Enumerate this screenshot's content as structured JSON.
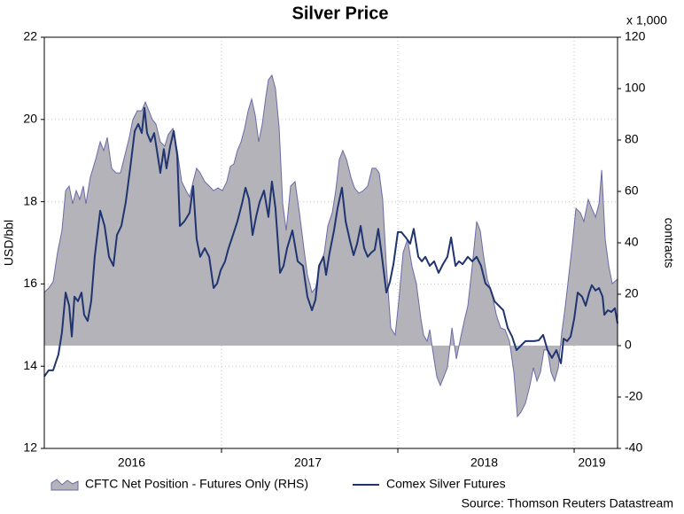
{
  "chart_data": {
    "type": "area-line",
    "title": "Silver Price",
    "ylabel": "USD/bbl",
    "y2label": "contracts",
    "y2_unit": "x 1,000",
    "source": "Source: Thomson Reuters Datastream",
    "xlim": [
      2015.995,
      2019.246
    ],
    "xticks": [
      {
        "value": 2016.49,
        "label": "2016"
      },
      {
        "value": 2017.49,
        "label": "2017"
      },
      {
        "value": 2018.49,
        "label": "2018"
      },
      {
        "value": 2019.1,
        "label": "2019"
      }
    ],
    "xminor_ticks": [
      2017,
      2018,
      2019
    ],
    "ylim": [
      12,
      22
    ],
    "yticks": [
      12,
      14,
      16,
      18,
      20,
      22
    ],
    "y2lim": [
      -40,
      120
    ],
    "y2ticks": [
      -40,
      -20,
      0,
      20,
      40,
      60,
      80,
      100,
      120
    ],
    "grid": true,
    "series": [
      {
        "name": "CFTC Net Position - Futures Only (RHS)",
        "type": "area",
        "axis": "y2",
        "color": "#b3b3b9",
        "edge_color": "#6a6aa8",
        "x": [
          2015.995,
          2016.02,
          2016.045,
          2016.07,
          2016.095,
          2016.116,
          2016.136,
          2016.156,
          2016.176,
          2016.196,
          2016.216,
          2016.231,
          2016.256,
          2016.286,
          2016.312,
          2016.332,
          2016.352,
          2016.377,
          2016.402,
          2016.427,
          2016.452,
          2016.477,
          2016.497,
          2016.523,
          2016.548,
          2016.568,
          2016.588,
          2016.608,
          2016.628,
          2016.653,
          2016.678,
          2016.698,
          2016.724,
          2016.749,
          2016.774,
          2016.799,
          2016.819,
          2016.839,
          2016.859,
          2016.879,
          2016.905,
          2016.93,
          2016.955,
          2016.98,
          2017.005,
          2017.03,
          2017.05,
          2017.07,
          2017.09,
          2017.111,
          2017.131,
          2017.151,
          2017.171,
          2017.191,
          2017.211,
          2017.231,
          2017.251,
          2017.266,
          2017.286,
          2017.306,
          2017.327,
          2017.347,
          2017.367,
          2017.392,
          2017.417,
          2017.442,
          2017.467,
          2017.487,
          2017.513,
          2017.533,
          2017.558,
          2017.583,
          2017.603,
          2017.628,
          2017.648,
          2017.668,
          2017.688,
          2017.709,
          2017.734,
          2017.754,
          2017.779,
          2017.804,
          2017.829,
          2017.854,
          2017.874,
          2017.894,
          2017.914,
          2017.935,
          2017.96,
          2017.985,
          2018.005,
          2018.03,
          2018.055,
          2018.08,
          2018.105,
          2018.131,
          2018.146,
          2018.166,
          2018.181,
          2018.201,
          2018.221,
          2018.241,
          2018.261,
          2018.281,
          2018.307,
          2018.332,
          2018.357,
          2018.377,
          2018.397,
          2018.422,
          2018.447,
          2018.467,
          2018.487,
          2018.507,
          2018.533,
          2018.558,
          2018.583,
          2018.608,
          2018.633,
          2018.658,
          2018.678,
          2018.698,
          2018.724,
          2018.749,
          2018.769,
          2018.789,
          2018.809,
          2018.829,
          2018.849,
          2018.869,
          2018.889,
          2018.91,
          2018.93,
          2018.95,
          2018.97,
          2018.99,
          2019.01,
          2019.035,
          2019.055,
          2019.08,
          2019.1,
          2019.121,
          2019.141,
          2019.156,
          2019.176,
          2019.196,
          2019.216,
          2019.246
        ],
        "values": [
          20.7,
          22.4,
          24.8,
          36.2,
          44.8,
          60.3,
          62.1,
          55.2,
          60.3,
          56.9,
          62.1,
          55.2,
          65.5,
          72.4,
          79.3,
          75.9,
          81.0,
          69.0,
          67.2,
          67.2,
          74.1,
          81.0,
          87.9,
          91.4,
          91.4,
          94.8,
          91.4,
          87.9,
          86.2,
          79.3,
          77.6,
          82.1,
          84.5,
          75.9,
          63.8,
          60.3,
          57.9,
          63.8,
          69.0,
          67.2,
          63.8,
          62.1,
          60.3,
          61.4,
          60.3,
          63.8,
          69.7,
          70.7,
          75.9,
          79.3,
          84.5,
          91.4,
          95.9,
          89.7,
          79.3,
          86.2,
          96.6,
          103.4,
          105.2,
          100.0,
          84.5,
          55.2,
          44.8,
          62.1,
          63.8,
          51.7,
          37.9,
          27.6,
          20.7,
          22.4,
          31.0,
          36.2,
          46.6,
          51.7,
          60.3,
          72.4,
          75.9,
          72.4,
          65.5,
          61.4,
          59.3,
          60.3,
          62.1,
          69.0,
          69.0,
          67.2,
          56.9,
          31.0,
          6.9,
          4.1,
          17.2,
          36.2,
          41.4,
          31.0,
          24.1,
          10.3,
          4.1,
          1.7,
          6.2,
          -3.4,
          -12.1,
          -15.5,
          -12.1,
          -8.6,
          6.9,
          -5.2,
          3.4,
          9.7,
          15.5,
          31.0,
          48.3,
          44.8,
          34.5,
          25.9,
          20.7,
          12.1,
          6.9,
          6.2,
          1.7,
          -10.3,
          -27.6,
          -25.9,
          -22.4,
          -15.5,
          -8.6,
          -13.8,
          -10.3,
          -1.7,
          -1.7,
          -10.3,
          -13.8,
          -8.6,
          5.2,
          15.5,
          27.6,
          39.7,
          53.4,
          51.7,
          48.3,
          56.9,
          53.4,
          50.0,
          55.2,
          68.3,
          41.4,
          31.0,
          24.1,
          25.9
        ]
      },
      {
        "name": "Comex Silver Futures",
        "type": "line",
        "axis": "y",
        "color": "#1f3470",
        "x": [
          2015.995,
          2016.02,
          2016.045,
          2016.075,
          2016.095,
          2016.116,
          2016.136,
          2016.151,
          2016.166,
          2016.186,
          2016.206,
          2016.221,
          2016.241,
          2016.261,
          2016.281,
          2016.312,
          2016.337,
          2016.362,
          2016.387,
          2016.407,
          2016.432,
          2016.457,
          2016.482,
          2016.508,
          2016.528,
          2016.548,
          2016.563,
          2016.578,
          2016.598,
          2016.618,
          2016.638,
          2016.653,
          2016.673,
          2016.688,
          2016.709,
          2016.729,
          2016.749,
          2016.764,
          2016.789,
          2016.819,
          2016.839,
          2016.859,
          2016.879,
          2016.905,
          2016.93,
          2016.955,
          2016.975,
          2016.995,
          2017.02,
          2017.04,
          2017.065,
          2017.09,
          2017.116,
          2017.136,
          2017.156,
          2017.176,
          2017.196,
          2017.216,
          2017.241,
          2017.266,
          2017.286,
          2017.306,
          2017.332,
          2017.352,
          2017.372,
          2017.402,
          2017.432,
          2017.462,
          2017.487,
          2017.513,
          2017.533,
          2017.553,
          2017.578,
          2017.593,
          2017.613,
          2017.638,
          2017.658,
          2017.683,
          2017.704,
          2017.729,
          2017.749,
          2017.769,
          2017.789,
          2017.809,
          2017.829,
          2017.849,
          2017.869,
          2017.889,
          2017.91,
          2017.935,
          2017.955,
          2017.975,
          2018.0,
          2018.02,
          2018.045,
          2018.07,
          2018.09,
          2018.116,
          2018.136,
          2018.156,
          2018.181,
          2018.206,
          2018.231,
          2018.256,
          2018.281,
          2018.302,
          2018.327,
          2018.347,
          2018.367,
          2018.397,
          2018.422,
          2018.447,
          2018.472,
          2018.497,
          2018.523,
          2018.548,
          2018.573,
          2018.598,
          2018.623,
          2018.648,
          2018.673,
          2018.698,
          2018.724,
          2018.749,
          2018.774,
          2018.799,
          2018.824,
          2018.849,
          2018.874,
          2018.899,
          2018.925,
          2018.94,
          2018.96,
          2018.98,
          2019.0,
          2019.02,
          2019.045,
          2019.065,
          2019.085,
          2019.1,
          2019.121,
          2019.141,
          2019.161,
          2019.171,
          2019.191,
          2019.211,
          2019.231,
          2019.246
        ],
        "values": [
          13.75,
          13.9,
          13.9,
          14.28,
          14.82,
          15.79,
          15.47,
          14.72,
          15.69,
          15.58,
          15.79,
          15.25,
          15.1,
          15.58,
          16.66,
          17.78,
          17.41,
          16.66,
          16.44,
          17.19,
          17.41,
          17.99,
          18.81,
          19.72,
          19.89,
          19.67,
          20.28,
          19.67,
          19.46,
          19.67,
          19.13,
          18.7,
          19.28,
          18.81,
          19.35,
          19.72,
          19.13,
          17.41,
          17.52,
          17.73,
          18.38,
          17.09,
          16.66,
          16.87,
          16.66,
          15.9,
          16.01,
          16.33,
          16.55,
          16.87,
          17.19,
          17.52,
          17.95,
          18.34,
          18.06,
          17.19,
          17.63,
          17.99,
          18.27,
          17.63,
          18.49,
          17.84,
          16.27,
          16.44,
          16.87,
          17.3,
          16.55,
          16.44,
          15.69,
          15.36,
          15.62,
          16.44,
          16.66,
          16.22,
          16.76,
          17.3,
          17.84,
          18.34,
          17.52,
          17.04,
          16.7,
          16.98,
          17.41,
          16.87,
          16.66,
          16.76,
          16.83,
          17.34,
          16.66,
          15.79,
          16.05,
          16.48,
          17.26,
          17.26,
          17.13,
          16.98,
          17.34,
          16.66,
          16.55,
          16.66,
          16.44,
          16.55,
          16.27,
          16.48,
          16.66,
          17.13,
          16.44,
          16.55,
          16.48,
          16.66,
          16.55,
          16.66,
          16.44,
          16.01,
          15.9,
          15.58,
          15.47,
          15.36,
          14.93,
          14.72,
          14.39,
          14.5,
          14.61,
          14.61,
          14.61,
          14.63,
          14.76,
          14.39,
          14.2,
          14.39,
          14.07,
          14.67,
          14.61,
          14.72,
          15.15,
          15.79,
          15.69,
          15.47,
          15.79,
          15.97,
          15.84,
          15.9,
          15.69,
          15.25,
          15.36,
          15.32,
          15.41,
          15.04
        ]
      }
    ]
  }
}
